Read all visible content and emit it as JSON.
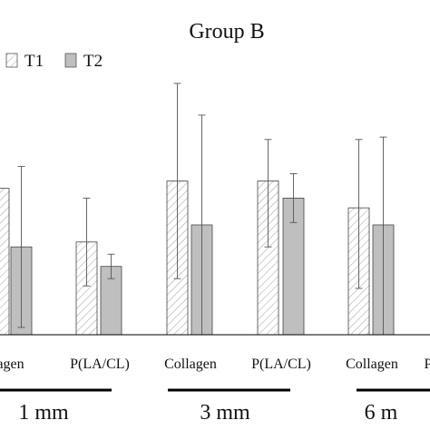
{
  "chart_data": {
    "type": "bar",
    "title": "Group B",
    "ylabel": "",
    "xlabel": "",
    "ylim": [
      0,
      100
    ],
    "grid": false,
    "legend_position": "top-left",
    "series": [
      {
        "name": "T1",
        "pattern": "diagonal-hatch",
        "color": "#ffffff",
        "groups": [
          "1 mm",
          "1 mm",
          "3 mm",
          "3 mm",
          "6 mm"
        ],
        "categories": [
          "Collagen",
          "P(LA/CL)",
          "Collagen",
          "P(LA/CL)",
          "Collagen"
        ],
        "values": [
          60,
          38,
          63,
          63,
          52
        ],
        "error_lower": [
          null,
          18,
          40,
          27,
          33
        ],
        "error_upper": [
          null,
          18,
          40,
          17,
          28
        ]
      },
      {
        "name": "T2",
        "pattern": "solid",
        "color": "#bfbfbf",
        "groups": [
          "1 mm",
          "1 mm",
          "3 mm",
          "3 mm",
          "6 mm"
        ],
        "categories": [
          "Collagen",
          "P(LA/CL)",
          "Collagen",
          "P(LA/CL)",
          "Collagen"
        ],
        "values": [
          36,
          28,
          45,
          56,
          45
        ],
        "error_lower": [
          33,
          5,
          45,
          10,
          45
        ],
        "error_upper": [
          33,
          5,
          45,
          10,
          36
        ]
      }
    ],
    "tick_labels": [
      "lagen",
      "P(LA/CL)",
      "Collagen",
      "P(LA/CL)",
      "Collagen",
      "P"
    ],
    "group_labels": [
      "1 mm",
      "3 mm",
      "6 m"
    ]
  },
  "colors": {
    "axis": "#000000",
    "t2_fill": "#bfbfbf",
    "hatch_line": "#9a9a9a",
    "error_bar": "#555555",
    "group_rule": "#000000"
  }
}
